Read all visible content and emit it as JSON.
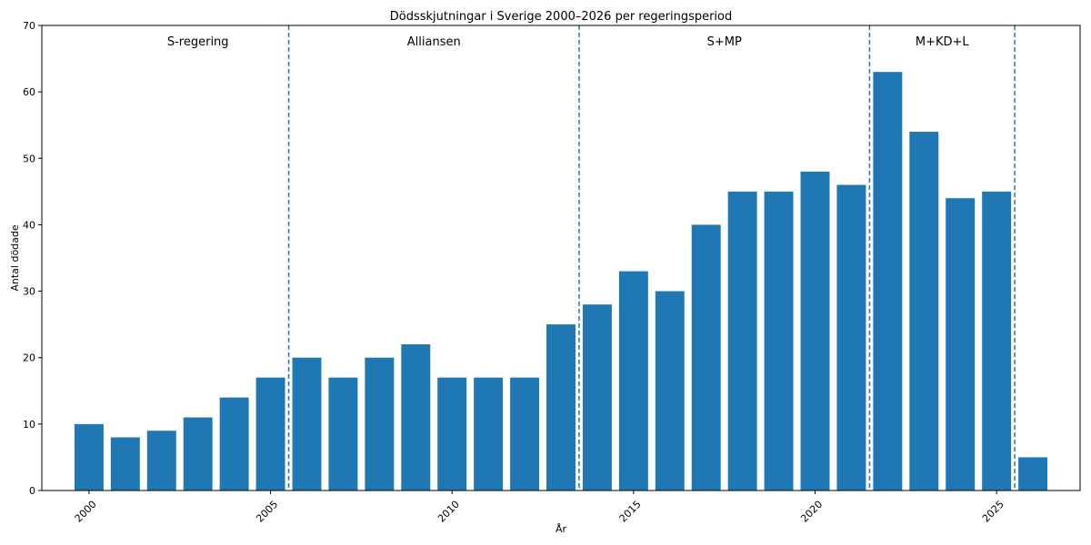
{
  "chart_data": {
    "type": "bar",
    "title": "Dödsskjutningar i Sverige 2000–2026 per regeringsperiod",
    "xlabel": "År",
    "ylabel": "Antal dödade",
    "ylim": [
      0,
      70
    ],
    "xlim": [
      1998.7,
      2027.3
    ],
    "yticks": [
      0,
      10,
      20,
      30,
      40,
      50,
      60,
      70
    ],
    "xticks": [
      2000,
      2005,
      2010,
      2015,
      2020,
      2025
    ],
    "x": [
      2000,
      2001,
      2002,
      2003,
      2004,
      2005,
      2006,
      2007,
      2008,
      2009,
      2010,
      2011,
      2012,
      2013,
      2014,
      2015,
      2016,
      2017,
      2018,
      2019,
      2020,
      2021,
      2022,
      2023,
      2024,
      2025,
      2026
    ],
    "values": [
      10,
      8,
      9,
      11,
      14,
      17,
      20,
      17,
      20,
      22,
      17,
      17,
      17,
      25,
      28,
      33,
      30,
      40,
      45,
      45,
      48,
      46,
      63,
      54,
      44,
      45,
      5
    ],
    "bar_color": "#1f77b4",
    "grid": false,
    "period_boundaries": [
      2005.5,
      2013.5,
      2021.5,
      2025.5
    ],
    "periods": [
      {
        "label": "S-regering",
        "x": 2003
      },
      {
        "label": "Alliansen",
        "x": 2009.5
      },
      {
        "label": "S+MP",
        "x": 2017.5
      },
      {
        "label": "M+KD+L",
        "x": 2023.5
      }
    ]
  }
}
